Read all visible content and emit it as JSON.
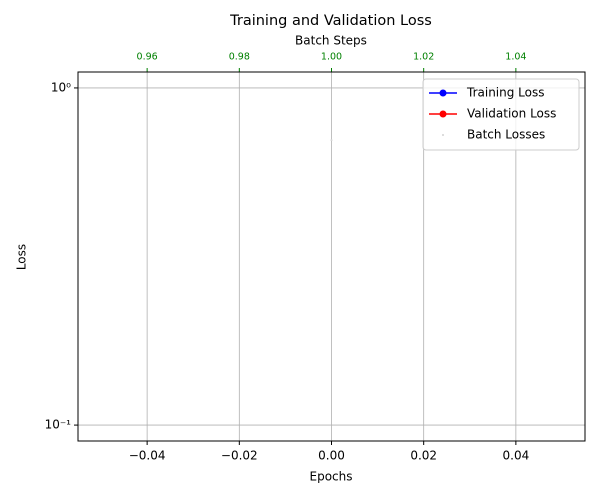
{
  "chart_data": {
    "type": "line",
    "title": "Training and Validation Loss",
    "xlabel": "Epochs",
    "x2label": "Batch Steps",
    "ylabel": "Loss",
    "xlim": [
      -0.055,
      0.055
    ],
    "xticks": [
      {
        "value": -0.04,
        "label": "−0.04"
      },
      {
        "value": -0.02,
        "label": "−0.02"
      },
      {
        "value": 0,
        "label": "0.00"
      },
      0.02,
      0.04
    ],
    "x2lim": [
      0.945,
      1.055
    ],
    "x2ticks": [
      0.96,
      0.98,
      {
        "value": 1,
        "label": "1.00"
      },
      1.02,
      1.04
    ],
    "x2tick_color": "green",
    "ylim": [
      0.0897,
      1.115
    ],
    "yticks": [
      {
        "value": 0.1,
        "label": "10⁻¹"
      },
      {
        "value": 1,
        "label": "10⁰"
      }
    ],
    "yscale": "log",
    "grid": true,
    "legend": "upper right",
    "series": [
      {
        "name": "Training Loss",
        "color": "blue",
        "marker": "o",
        "x": [],
        "values": []
      },
      {
        "name": "Validation Loss",
        "color": "red",
        "marker": "o",
        "x": [],
        "values": []
      },
      {
        "name": "Batch Losses",
        "color": "lightgray",
        "marker": ".",
        "axis": "x2",
        "x": [
          1
        ],
        "values": [
          0.7
        ]
      }
    ]
  }
}
